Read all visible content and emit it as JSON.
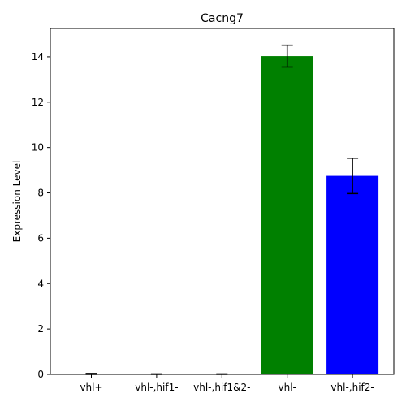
{
  "chart_data": {
    "type": "bar",
    "title": "Cacng7",
    "xlabel": "",
    "ylabel": "Expression Level",
    "categories": [
      "vhl+",
      "vhl-,hif1-",
      "vhl-,hif1&2-",
      "vhl-",
      "vhl-,hif2-"
    ],
    "values": [
      0.02,
      0.01,
      0.01,
      14.03,
      8.75
    ],
    "errors": [
      0.02,
      0.01,
      0.01,
      0.48,
      0.78
    ],
    "colors": [
      "#ff0000",
      "#ff0000",
      "#ff0000",
      "#008000",
      "#0000ff"
    ],
    "ylim": [
      0,
      15.25
    ],
    "yticks": [
      "0",
      "2",
      "4",
      "6",
      "8",
      "10",
      "12",
      "14"
    ],
    "grid": false,
    "legend": "none"
  }
}
